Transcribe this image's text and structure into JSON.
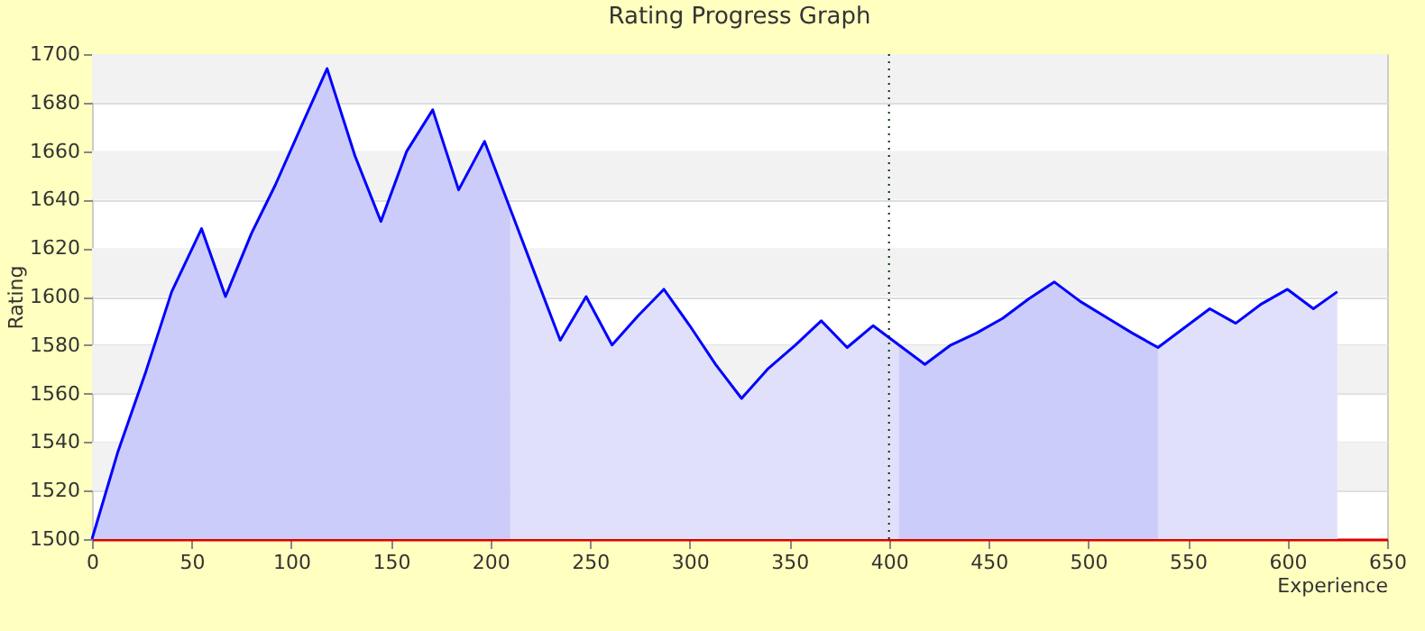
{
  "chart_data": {
    "type": "line",
    "title": "Rating Progress Graph",
    "xlabel": "Experience",
    "ylabel": "Rating",
    "series": [
      {
        "type": "area",
        "color": "#ccccfa",
        "x": [
          0,
          13,
          27,
          40,
          55,
          67,
          80,
          92,
          106,
          118,
          132,
          145,
          158,
          171,
          184,
          197,
          210
        ],
        "values": [
          1500,
          1536,
          1569,
          1602,
          1628,
          1600,
          1626,
          1646,
          1672,
          1694,
          1658,
          1631,
          1660,
          1677,
          1644,
          1664,
          1636
        ]
      },
      {
        "type": "area",
        "color": "#e0e0fa",
        "x": [
          210,
          222,
          235,
          248,
          261,
          274,
          287,
          300,
          313,
          326,
          339,
          353,
          366,
          379,
          392,
          405
        ],
        "values": [
          1636,
          1610,
          1582,
          1600,
          1580,
          1592,
          1603,
          1588,
          1572,
          1558,
          1570,
          1580,
          1590,
          1579,
          1588,
          1580
        ]
      },
      {
        "type": "area",
        "color": "#ccccfa",
        "x": [
          405,
          418,
          431,
          444,
          457,
          470,
          483,
          496,
          510,
          522,
          535
        ],
        "values": [
          1580,
          1572,
          1580,
          1585,
          1591,
          1599,
          1606,
          1598,
          1591,
          1585,
          1579
        ]
      },
      {
        "type": "area",
        "color": "#e0e0fa",
        "x": [
          535,
          548,
          561,
          574,
          587,
          600,
          613,
          625
        ],
        "values": [
          1579,
          1587,
          1595,
          1589,
          1597,
          1603,
          1595,
          1602
        ]
      },
      {
        "color": "#0000ff",
        "x": [
          0,
          13,
          27,
          40,
          55,
          67,
          80,
          92,
          106,
          118,
          132,
          145,
          158,
          171,
          184,
          197,
          210,
          222,
          235,
          248,
          261,
          274,
          287,
          300,
          313,
          326,
          339,
          353,
          366,
          379,
          392,
          405,
          418,
          431,
          444,
          457,
          470,
          483,
          496,
          510,
          522,
          535,
          548,
          561,
          574,
          587,
          600,
          613,
          625
        ],
        "values": [
          1500,
          1536,
          1569,
          1602,
          1628,
          1600,
          1626,
          1646,
          1672,
          1694,
          1658,
          1631,
          1660,
          1677,
          1644,
          1664,
          1636,
          1610,
          1582,
          1600,
          1580,
          1592,
          1603,
          1588,
          1572,
          1558,
          1570,
          1580,
          1590,
          1579,
          1588,
          1580,
          1572,
          1580,
          1585,
          1591,
          1599,
          1606,
          1598,
          1591,
          1585,
          1579,
          1587,
          1595,
          1589,
          1597,
          1603,
          1595,
          1602
        ]
      }
    ],
    "xlim": [
      0,
      650
    ],
    "xticks": [
      0,
      50,
      100,
      150,
      200,
      250,
      300,
      350,
      400,
      450,
      500,
      550,
      600,
      650
    ],
    "ylim": [
      1500,
      1700
    ],
    "yticks": [
      1500,
      1520,
      1540,
      1560,
      1580,
      1600,
      1620,
      1640,
      1660,
      1680,
      1700
    ],
    "grid": "y",
    "marker": "none",
    "line_style": "solid",
    "ref_lines": [
      {
        "axis": "x",
        "value": 400,
        "label": null,
        "color": "#003300",
        "line_style": "dotted"
      }
    ]
  }
}
